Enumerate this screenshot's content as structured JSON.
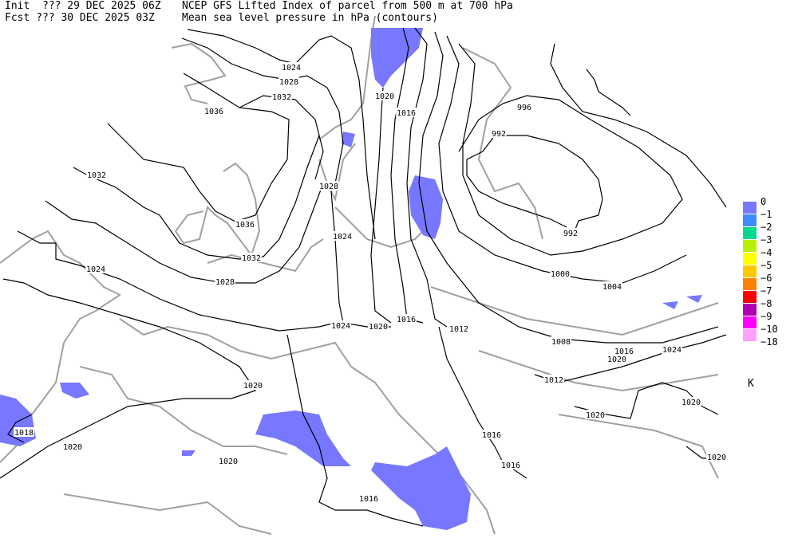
{
  "header": {
    "init_line": "Init  ??? 29 DEC 2025 06Z",
    "fcst_line": "Fcst ??? 30 DEC 2025 03Z",
    "title_line1": "NCEP GFS Lifted Index of parcel from 500 m at 700 hPa",
    "title_line2": "Mean sea level pressure in hPa (contours)"
  },
  "legend": {
    "unit": "K",
    "colors": [
      "#7777ff",
      "#3b8cff",
      "#00d890",
      "#b8f000",
      "#ffff00",
      "#ffc800",
      "#ff8000",
      "#ff0000",
      "#b000b0",
      "#ff00ff",
      "#ffa0ff"
    ],
    "labels": [
      "0",
      "−1",
      "−2",
      "−3",
      "−4",
      "−5",
      "−6",
      "−7",
      "−8",
      "−9",
      "−10",
      "−18"
    ]
  },
  "colors": {
    "contour": "#000000",
    "coastline": "#a0a0a0",
    "precip_li_0": "#7777ff"
  },
  "contour_labels": [
    "1024",
    "1028",
    "1032",
    "1036",
    "1032",
    "1036",
    "1032",
    "1024",
    "1028",
    "1028",
    "1024",
    "1020",
    "1016",
    "996",
    "992",
    "992",
    "1000",
    "1004",
    "1024",
    "1020",
    "1016",
    "1012",
    "1008",
    "1016",
    "1024",
    "1020",
    "1012",
    "1020",
    "1020",
    "1020",
    "1018",
    "1020",
    "1016",
    "1020",
    "1016",
    "1016",
    "1020"
  ]
}
